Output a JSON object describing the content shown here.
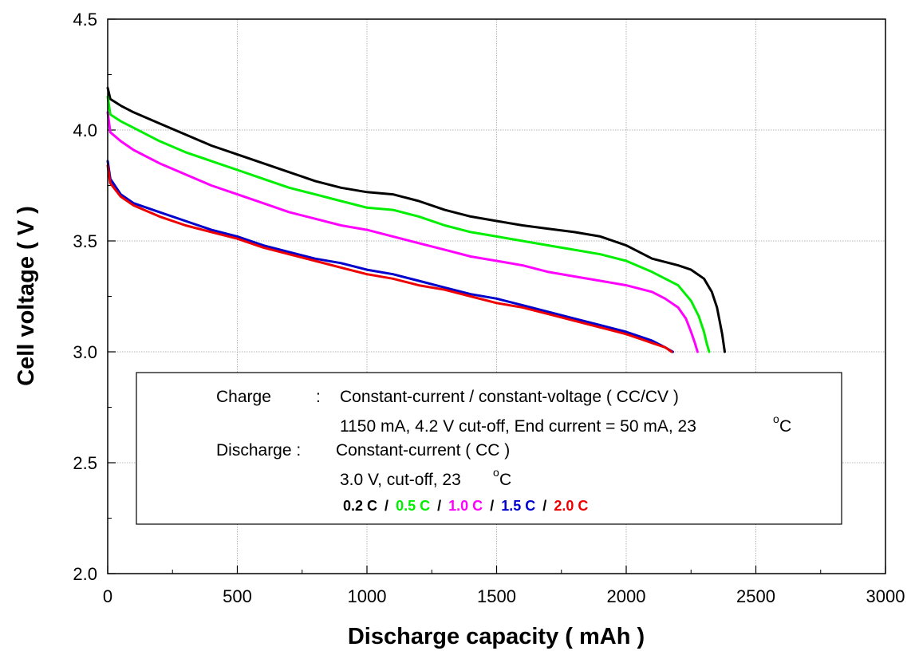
{
  "chart_data": {
    "type": "line",
    "xlabel": "Discharge capacity ( mAh )",
    "ylabel": "Cell voltage ( V )",
    "xlim": [
      0,
      3000
    ],
    "ylim": [
      2.0,
      4.5
    ],
    "x_ticks": [
      "0",
      "500",
      "1000",
      "1500",
      "2000",
      "2500",
      "3000"
    ],
    "y_ticks": [
      "2.0",
      "2.5",
      "3.0",
      "3.5",
      "4.0",
      "4.5"
    ],
    "grid": true,
    "annotation": {
      "charge_label": "Charge",
      "charge_colon": ":",
      "charge_desc": "Constant-current / constant-voltage ( CC/CV )",
      "charge_detail": "1150 mA, 4.2 V cut-off, End current = 50 mA, 23",
      "discharge_label": "Discharge :",
      "discharge_desc": "Constant-current ( CC )",
      "discharge_detail": "3.0 V, cut-off, 23",
      "degree_symbol": "o",
      "unit_c": "C",
      "separator": "/"
    },
    "series": [
      {
        "name": "0.2 C",
        "color": "#000000",
        "x": [
          0,
          10,
          50,
          100,
          200,
          300,
          400,
          500,
          600,
          700,
          800,
          900,
          1000,
          1100,
          1200,
          1300,
          1400,
          1500,
          1600,
          1700,
          1800,
          1900,
          2000,
          2100,
          2200,
          2250,
          2300,
          2330,
          2350,
          2370,
          2380
        ],
        "y": [
          4.19,
          4.14,
          4.11,
          4.08,
          4.03,
          3.98,
          3.93,
          3.89,
          3.85,
          3.81,
          3.77,
          3.74,
          3.72,
          3.71,
          3.68,
          3.64,
          3.61,
          3.59,
          3.57,
          3.555,
          3.54,
          3.52,
          3.48,
          3.42,
          3.39,
          3.37,
          3.33,
          3.27,
          3.2,
          3.08,
          3.0
        ]
      },
      {
        "name": "0.5 C",
        "color": "#00ee00",
        "x": [
          0,
          10,
          50,
          100,
          200,
          300,
          400,
          500,
          600,
          700,
          800,
          900,
          1000,
          1100,
          1200,
          1300,
          1400,
          1500,
          1600,
          1700,
          1800,
          1900,
          2000,
          2100,
          2200,
          2250,
          2280,
          2300,
          2310,
          2320
        ],
        "y": [
          4.15,
          4.07,
          4.04,
          4.01,
          3.95,
          3.9,
          3.86,
          3.82,
          3.78,
          3.74,
          3.71,
          3.68,
          3.65,
          3.64,
          3.61,
          3.57,
          3.54,
          3.52,
          3.5,
          3.48,
          3.46,
          3.44,
          3.41,
          3.36,
          3.3,
          3.23,
          3.16,
          3.09,
          3.04,
          3.0
        ]
      },
      {
        "name": "1.0 C",
        "color": "#ff00ff",
        "x": [
          0,
          10,
          50,
          100,
          200,
          300,
          400,
          500,
          600,
          700,
          800,
          900,
          1000,
          1100,
          1200,
          1300,
          1400,
          1500,
          1600,
          1700,
          1800,
          1900,
          2000,
          2100,
          2150,
          2200,
          2230,
          2250,
          2265,
          2275
        ],
        "y": [
          4.08,
          3.99,
          3.95,
          3.91,
          3.85,
          3.8,
          3.75,
          3.71,
          3.67,
          3.63,
          3.6,
          3.57,
          3.55,
          3.52,
          3.49,
          3.46,
          3.43,
          3.41,
          3.39,
          3.36,
          3.34,
          3.32,
          3.3,
          3.27,
          3.24,
          3.2,
          3.15,
          3.09,
          3.04,
          3.0
        ]
      },
      {
        "name": "1.5 C",
        "color": "#0000cc",
        "x": [
          0,
          10,
          50,
          100,
          200,
          300,
          400,
          500,
          600,
          700,
          800,
          900,
          1000,
          1100,
          1200,
          1300,
          1400,
          1500,
          1600,
          1700,
          1800,
          1900,
          2000,
          2050,
          2100,
          2150,
          2180
        ],
        "y": [
          3.86,
          3.78,
          3.71,
          3.67,
          3.63,
          3.59,
          3.55,
          3.52,
          3.48,
          3.45,
          3.42,
          3.4,
          3.37,
          3.35,
          3.32,
          3.29,
          3.26,
          3.24,
          3.21,
          3.18,
          3.15,
          3.12,
          3.09,
          3.07,
          3.05,
          3.02,
          3.0
        ]
      },
      {
        "name": "2.0 C",
        "color": "#ee0000",
        "x": [
          0,
          10,
          50,
          100,
          200,
          300,
          400,
          500,
          600,
          700,
          800,
          900,
          1000,
          1100,
          1200,
          1300,
          1400,
          1500,
          1600,
          1700,
          1800,
          1900,
          2000,
          2050,
          2100,
          2150,
          2175
        ],
        "y": [
          3.84,
          3.76,
          3.7,
          3.66,
          3.61,
          3.57,
          3.54,
          3.51,
          3.47,
          3.44,
          3.41,
          3.38,
          3.35,
          3.33,
          3.3,
          3.28,
          3.25,
          3.22,
          3.2,
          3.17,
          3.14,
          3.11,
          3.08,
          3.06,
          3.04,
          3.02,
          3.0
        ]
      }
    ]
  }
}
